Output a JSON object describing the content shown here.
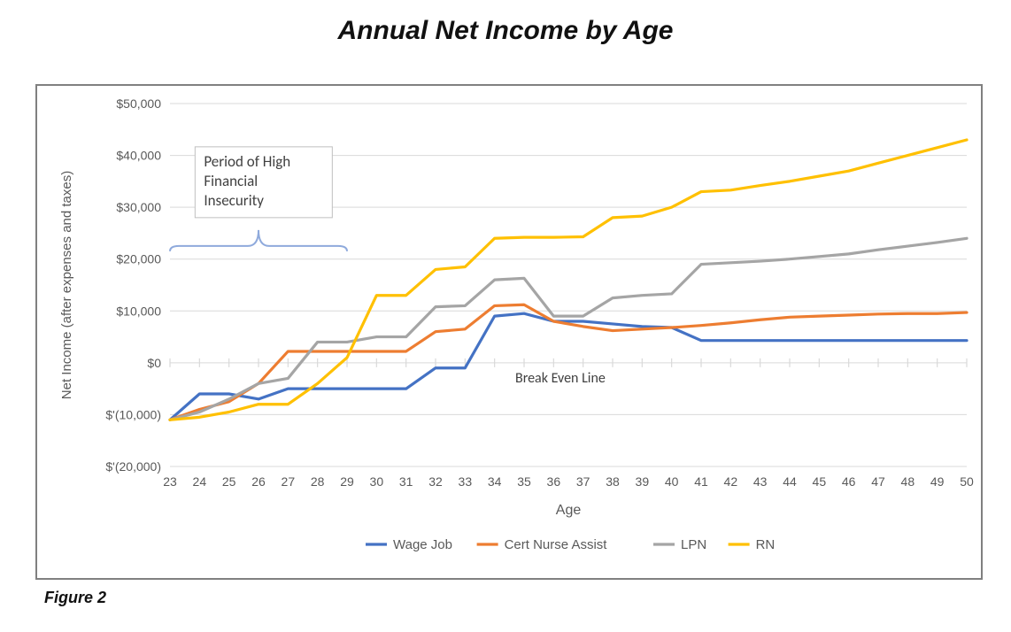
{
  "title": "Annual Net Income by Age",
  "figure_caption": "Figure 2",
  "chart": {
    "type": "line",
    "x_label": "Age",
    "y_label": "Net Income (after expenses and taxes)",
    "x_values": [
      23,
      24,
      25,
      26,
      27,
      28,
      29,
      30,
      31,
      32,
      33,
      34,
      35,
      36,
      37,
      38,
      39,
      40,
      41,
      42,
      43,
      44,
      45,
      46,
      47,
      48,
      49,
      50
    ],
    "x_tick_labels": [
      "23",
      "24",
      "25",
      "26",
      "27",
      "28",
      "29",
      "30",
      "31",
      "32",
      "33",
      "34",
      "35",
      "36",
      "37",
      "38",
      "39",
      "40",
      "41",
      "42",
      "43",
      "44",
      "45",
      "46",
      "47",
      "48",
      "49",
      "50"
    ],
    "y_min": -20000,
    "y_max": 50000,
    "y_tick_step": 10000,
    "y_tick_labels": [
      "$'(20,000)",
      "$'(10,000)",
      "$0",
      "$10,000",
      "$20,000",
      "$30,000",
      "$40,000",
      "$50,000"
    ],
    "background_color": "#ffffff",
    "grid_color": "#d9d9d9",
    "axis_text_color": "#595959",
    "axis_label_fontsize": 15,
    "tick_fontsize": 14,
    "line_width": 3.2,
    "series": [
      {
        "name": "Wage Job",
        "color": "#4472c4",
        "values": [
          -11000,
          -6000,
          -6000,
          -7000,
          -5000,
          -5000,
          -5000,
          -5000,
          -5000,
          -1000,
          -1000,
          9000,
          9500,
          8000,
          8000,
          7500,
          7000,
          6800,
          4300,
          4300,
          4300,
          4300,
          4300,
          4300,
          4300,
          4300,
          4300,
          4300
        ]
      },
      {
        "name": "Cert Nurse Assist",
        "color": "#ed7d31",
        "values": [
          -11000,
          -9000,
          -7500,
          -4000,
          2200,
          2200,
          2200,
          2200,
          2200,
          6000,
          6500,
          11000,
          11200,
          8000,
          7000,
          6200,
          6500,
          6800,
          7200,
          7700,
          8300,
          8800,
          9000,
          9200,
          9400,
          9500,
          9500,
          9700
        ]
      },
      {
        "name": "LPN",
        "color": "#a5a5a5",
        "values": [
          -11000,
          -9500,
          -7000,
          -4000,
          -3000,
          4000,
          4000,
          5000,
          5000,
          10800,
          11000,
          16000,
          16300,
          9000,
          9000,
          12500,
          13000,
          13300,
          19000,
          19300,
          19600,
          20000,
          20500,
          21000,
          21800,
          22500,
          23200,
          24000
        ]
      },
      {
        "name": "RN",
        "color": "#ffc000",
        "values": [
          -11000,
          -10500,
          -9500,
          -8000,
          -8000,
          -4000,
          1000,
          13000,
          13000,
          18000,
          18500,
          24000,
          24200,
          24200,
          24300,
          28000,
          28300,
          30000,
          33000,
          33300,
          34200,
          35000,
          36000,
          37000,
          38500,
          40000,
          41500,
          43000
        ]
      }
    ],
    "legend": {
      "items": [
        "Wage Job",
        "Cert Nurse Assist",
        "LPN",
        "RN"
      ],
      "colors": [
        "#4472c4",
        "#ed7d31",
        "#a5a5a5",
        "#ffc000"
      ],
      "dash_width": 24,
      "fontsize": 15
    },
    "annotations": {
      "box": {
        "lines": [
          "Period of High",
          "Financial",
          "Insecurity"
        ],
        "border_color": "#bfbfbf",
        "text_color": "#404040",
        "fontsize": 17
      },
      "bracket_color": "#8faadc",
      "break_even_label": "Break Even Line",
      "break_even_color": "#404040",
      "break_even_fontsize": 16
    }
  }
}
